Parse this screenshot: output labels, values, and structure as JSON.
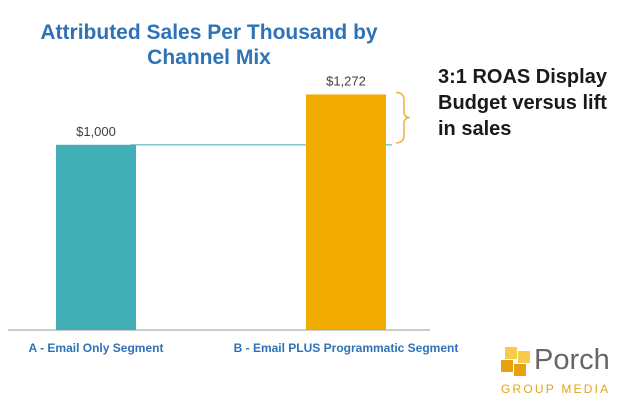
{
  "chart_data": {
    "type": "bar",
    "title": "Attributed Sales Per Thousand by Channel Mix",
    "categories": [
      "A - Email Only Segment",
      "B - Email PLUS Programmatic Segment"
    ],
    "values": [
      1000,
      1272
    ],
    "value_labels": [
      "$1,000",
      "$1,272"
    ],
    "bar_colors": [
      "#42aeb6",
      "#f2ab00"
    ],
    "ylim": [
      0,
      1350
    ],
    "xlabel": "",
    "ylabel": "",
    "grid": false,
    "reference_line": {
      "value": 1000,
      "color": "#42aeb6"
    },
    "annotation": "3:1 ROAS Display Budget versus lift in sales",
    "bracket_color": "#e8b94a",
    "colors": {
      "title": "#2e72b8",
      "category_label": "#2e72b8",
      "axis": "#9a9a9a"
    }
  },
  "logo": {
    "name": "Porch",
    "subtitle": "GROUP MEDIA",
    "icon": "porch-squares-icon",
    "colors": {
      "word": "#666666",
      "subtitle": "#e2a31e",
      "squares": [
        "#f6cc4a",
        "#e7a10f"
      ]
    }
  }
}
